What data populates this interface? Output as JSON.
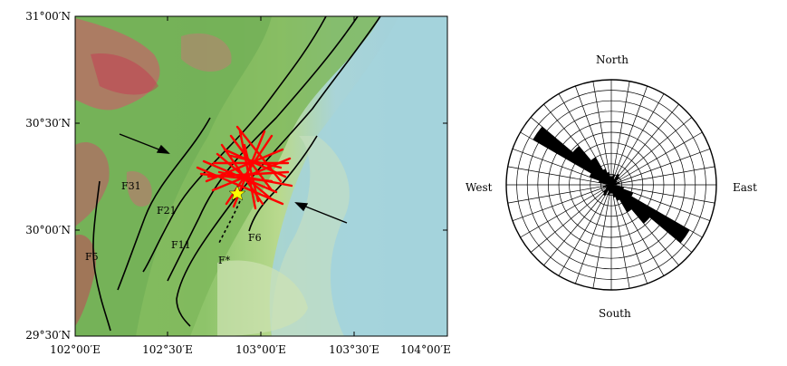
{
  "map": {
    "lat_labels": [
      "31°00′N",
      "30°30′N",
      "30°00′N",
      "29°30′N"
    ],
    "lon_labels": [
      "102°00′E",
      "102°30′E",
      "103°00′E",
      "103°30′E",
      "104°00′E"
    ],
    "fault_labels": [
      "F31",
      "F21",
      "F11",
      "F*",
      "F6",
      "F5"
    ],
    "colors": {
      "fault_line": "#000000",
      "rupture_lines": "#ff0000",
      "epicenter_star": "#ffff00",
      "plain": "#9fd0dc",
      "mountains": "#7fb560",
      "peaks": "#d23060"
    }
  },
  "rose": {
    "directions": {
      "north": "North",
      "south": "South",
      "east": "East",
      "west": "West"
    },
    "dominant_trend": "NW-SE",
    "colors": {
      "petals": "#000000",
      "grid": "#000000"
    }
  }
}
